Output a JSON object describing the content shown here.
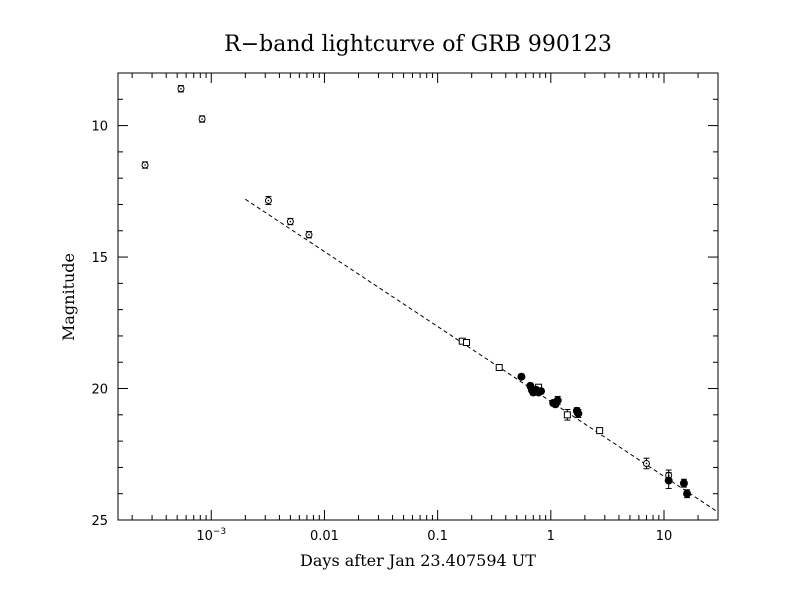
{
  "chart_data": {
    "type": "scatter",
    "title": "R−band lightcurve of GRB 990123",
    "xlabel": "Days after Jan 23.407594 UT",
    "ylabel": "Magnitude",
    "xscale": "log",
    "xlim": [
      0.00015,
      30
    ],
    "ylim": [
      25,
      8
    ],
    "y_inverted": true,
    "grid": false,
    "x_ticks": [
      {
        "value": 0.001,
        "base": "10",
        "exp": "−3"
      },
      {
        "value": 0.01,
        "label": "0.01"
      },
      {
        "value": 0.1,
        "label": "0.1"
      },
      {
        "value": 1,
        "label": "1"
      },
      {
        "value": 10,
        "label": "10"
      }
    ],
    "y_ticks": [
      {
        "value": 10,
        "label": "10"
      },
      {
        "value": 15,
        "label": "15"
      },
      {
        "value": 20,
        "label": "20"
      },
      {
        "value": 25,
        "label": "25"
      }
    ],
    "series": [
      {
        "marker": "open-circle",
        "points": [
          {
            "x": 0.00026,
            "y": 11.5,
            "err": 0.12
          },
          {
            "x": 0.00054,
            "y": 8.6,
            "err": 0.12
          },
          {
            "x": 0.00083,
            "y": 9.75,
            "err": 0.12
          },
          {
            "x": 0.0032,
            "y": 12.85,
            "err": 0.15
          },
          {
            "x": 0.005,
            "y": 13.65,
            "err": 0.12
          },
          {
            "x": 0.0073,
            "y": 14.15,
            "err": 0.12
          },
          {
            "x": 7.0,
            "y": 22.85,
            "err": 0.2
          },
          {
            "x": 11.0,
            "y": 23.3,
            "err": 0.2
          }
        ]
      },
      {
        "marker": "open-square",
        "points": [
          {
            "x": 0.165,
            "y": 18.2,
            "err": 0.1
          },
          {
            "x": 0.18,
            "y": 18.25,
            "err": 0.08
          },
          {
            "x": 0.35,
            "y": 19.2,
            "err": 0.08
          },
          {
            "x": 0.78,
            "y": 19.95,
            "err": 0.1
          },
          {
            "x": 1.4,
            "y": 21.0,
            "err": 0.2
          },
          {
            "x": 2.7,
            "y": 21.6,
            "err": 0.1
          }
        ]
      },
      {
        "marker": "filled-circle",
        "points": [
          {
            "x": 0.55,
            "y": 19.55,
            "err": 0.08
          },
          {
            "x": 0.66,
            "y": 19.9,
            "err": 0.1
          },
          {
            "x": 0.68,
            "y": 20.05,
            "err": 0.1
          },
          {
            "x": 0.7,
            "y": 20.15,
            "err": 0.1
          },
          {
            "x": 0.74,
            "y": 20.05,
            "err": 0.1
          },
          {
            "x": 0.78,
            "y": 20.15,
            "err": 0.08
          },
          {
            "x": 0.82,
            "y": 20.1,
            "err": 0.08
          },
          {
            "x": 1.05,
            "y": 20.55,
            "err": 0.1
          },
          {
            "x": 1.1,
            "y": 20.6,
            "err": 0.1
          },
          {
            "x": 1.15,
            "y": 20.45,
            "err": 0.15
          },
          {
            "x": 1.7,
            "y": 20.85,
            "err": 0.12
          },
          {
            "x": 1.75,
            "y": 20.95,
            "err": 0.15
          },
          {
            "x": 11.0,
            "y": 23.5,
            "err": 0.3
          },
          {
            "x": 15.0,
            "y": 23.6,
            "err": 0.15
          },
          {
            "x": 16.0,
            "y": 24.0,
            "err": 0.15
          }
        ]
      }
    ],
    "fit_line": {
      "style": "dashed",
      "x": [
        0.002,
        30
      ],
      "y": [
        12.8,
        24.7
      ]
    }
  }
}
